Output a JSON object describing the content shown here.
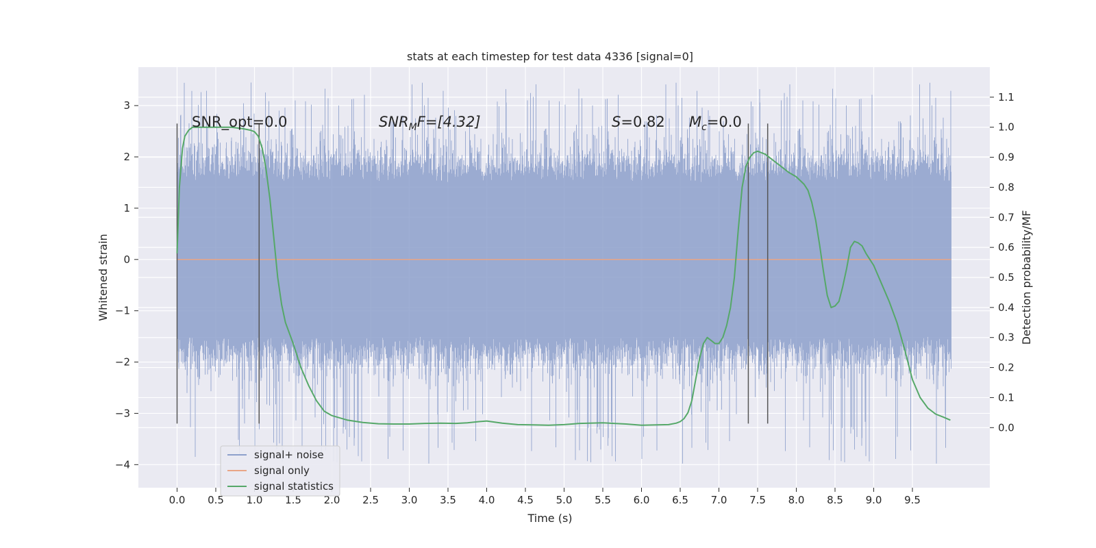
{
  "chart_data": {
    "type": "line",
    "title": "stats at each timestep for test data 4336 [signal=0]",
    "xlabel": "Time (s)",
    "ylabel": "Whitened strain",
    "y2label": "Detection probability/MF",
    "xlim": [
      -0.5,
      10.5
    ],
    "ylim": [
      -4.45,
      3.75
    ],
    "y2lim": [
      -0.2,
      1.2
    ],
    "x_ticks": [
      "0.0",
      "0.5",
      "1.0",
      "1.5",
      "2.0",
      "2.5",
      "3.0",
      "3.5",
      "4.0",
      "4.5",
      "5.0",
      "5.5",
      "6.0",
      "6.5",
      "7.0",
      "7.5",
      "8.0",
      "8.5",
      "9.0",
      "9.5"
    ],
    "y_ticks": [
      "3",
      "2",
      "1",
      "0",
      "−1",
      "−2",
      "−3",
      "−4"
    ],
    "y2_ticks": [
      "0.0",
      "0.1",
      "0.2",
      "0.3",
      "0.4",
      "0.5",
      "0.6",
      "0.7",
      "0.8",
      "0.9",
      "1.0",
      "1.1"
    ],
    "annotations": {
      "snr_opt": "SNR_opt=0.0",
      "snr_mf_base": "SNR",
      "snr_mf_sub": "M",
      "snr_mf_rest": "F=[4.32]",
      "s_base": "S",
      "s_rest": "=0.82",
      "mc_base": "M",
      "mc_sub": "c",
      "mc_rest": "=0.0"
    },
    "legend": {
      "placement": "lower-left",
      "entries": [
        "signal+ noise",
        "signal only",
        "signal statistics"
      ]
    },
    "colors": {
      "noise": "#8da0cb",
      "signal": "#e9a586",
      "stats": "#55a868",
      "background": "#eaeaf2",
      "vline": "#555555"
    },
    "noise": {
      "x_start": 0.0,
      "x_end": 10.0,
      "dense_band": [
        -1.5,
        1.5
      ],
      "extreme_range": [
        -4.0,
        3.45
      ]
    },
    "signal_only": {
      "x": [
        0.0,
        10.0
      ],
      "y": [
        0.0,
        0.0
      ]
    },
    "vlines": [
      {
        "x": 0.0,
        "y": [
          -3.2,
          2.65
        ]
      },
      {
        "x": 1.06,
        "y": [
          -3.2,
          2.65
        ]
      },
      {
        "x": 7.38,
        "y": [
          -3.2,
          2.65
        ]
      },
      {
        "x": 7.63,
        "y": [
          -3.2,
          2.65
        ]
      }
    ],
    "series": [
      {
        "name": "signal statistics",
        "axis": "right",
        "x": [
          0.0,
          0.03,
          0.07,
          0.1,
          0.15,
          0.2,
          0.3,
          0.5,
          0.7,
          0.85,
          0.95,
          1.0,
          1.05,
          1.1,
          1.15,
          1.2,
          1.25,
          1.3,
          1.35,
          1.4,
          1.5,
          1.6,
          1.7,
          1.8,
          1.9,
          2.0,
          2.2,
          2.4,
          2.6,
          2.8,
          3.0,
          3.2,
          3.4,
          3.6,
          3.75,
          3.9,
          4.0,
          4.2,
          4.4,
          4.6,
          4.8,
          5.0,
          5.2,
          5.5,
          5.8,
          6.0,
          6.2,
          6.35,
          6.45,
          6.5,
          6.55,
          6.6,
          6.65,
          6.7,
          6.75,
          6.8,
          6.85,
          6.9,
          6.95,
          7.0,
          7.05,
          7.1,
          7.15,
          7.2,
          7.25,
          7.3,
          7.35,
          7.4,
          7.45,
          7.5,
          7.6,
          7.7,
          7.8,
          7.9,
          8.0,
          8.1,
          8.15,
          8.2,
          8.25,
          8.3,
          8.35,
          8.4,
          8.45,
          8.5,
          8.55,
          8.6,
          8.65,
          8.7,
          8.75,
          8.8,
          8.85,
          8.9,
          9.0,
          9.1,
          9.2,
          9.3,
          9.4,
          9.5,
          9.6,
          9.7,
          9.8,
          9.9,
          9.99
        ],
        "y": [
          0.58,
          0.8,
          0.93,
          0.97,
          0.99,
          1.0,
          1.0,
          1.0,
          1.0,
          0.995,
          0.99,
          0.985,
          0.97,
          0.93,
          0.86,
          0.76,
          0.63,
          0.5,
          0.41,
          0.35,
          0.28,
          0.2,
          0.14,
          0.09,
          0.055,
          0.04,
          0.025,
          0.017,
          0.013,
          0.012,
          0.012,
          0.014,
          0.015,
          0.014,
          0.016,
          0.02,
          0.022,
          0.015,
          0.01,
          0.009,
          0.008,
          0.01,
          0.014,
          0.016,
          0.012,
          0.008,
          0.009,
          0.01,
          0.015,
          0.02,
          0.03,
          0.05,
          0.09,
          0.16,
          0.23,
          0.28,
          0.3,
          0.29,
          0.28,
          0.28,
          0.3,
          0.34,
          0.4,
          0.5,
          0.66,
          0.8,
          0.87,
          0.9,
          0.915,
          0.92,
          0.91,
          0.89,
          0.87,
          0.85,
          0.835,
          0.81,
          0.79,
          0.75,
          0.69,
          0.61,
          0.52,
          0.44,
          0.4,
          0.405,
          0.42,
          0.47,
          0.53,
          0.6,
          0.62,
          0.615,
          0.605,
          0.58,
          0.54,
          0.48,
          0.42,
          0.35,
          0.26,
          0.16,
          0.1,
          0.065,
          0.045,
          0.035,
          0.025
        ]
      }
    ]
  }
}
